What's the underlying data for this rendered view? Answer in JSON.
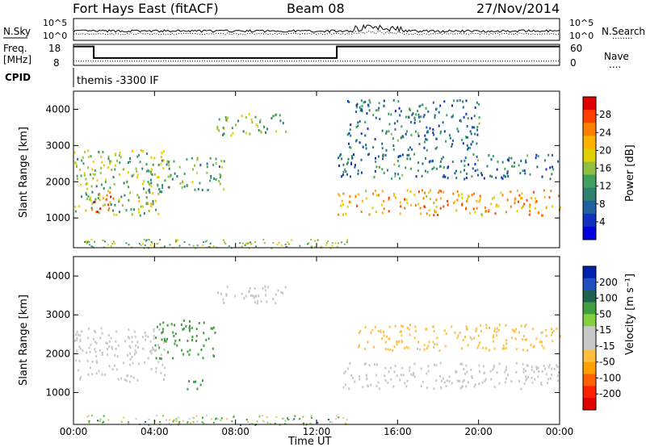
{
  "header": {
    "station": "Fort Hays East (fitACF)",
    "beam": "Beam 08",
    "date": "27/Nov/2014"
  },
  "noise_panel": {
    "left_label": "N.Sky",
    "left_ticks": [
      "10^5",
      "10^0"
    ],
    "right_ticks": [
      "10^5",
      "10^0"
    ],
    "right_label": "N.Search",
    "right_legend": "........"
  },
  "freq_panel": {
    "left_label_1": "Freq.",
    "left_label_2": "[MHz]",
    "left_ticks": [
      "18",
      "8"
    ],
    "right_ticks": [
      "60",
      "0"
    ],
    "right_label": "Nave",
    "right_legend": "....",
    "freq_steps": [
      {
        "t0": 0.0,
        "t1": 1.0,
        "mhz": 17.0
      },
      {
        "t0": 1.0,
        "t1": 13.0,
        "mhz": 11.5
      },
      {
        "t0": 13.0,
        "t1": 24.0,
        "mhz": 17.0
      }
    ],
    "nave_level": 12
  },
  "cpid": {
    "label": "CPID",
    "program": "themis -3300 IF"
  },
  "x_axis": {
    "title": "Time UT",
    "ticks": [
      "00:00",
      "04:00",
      "08:00",
      "12:00",
      "16:00",
      "20:00",
      "00:00"
    ],
    "range_hours": [
      0,
      24
    ]
  },
  "power_panel": {
    "ylabel": "Slant Range [km]",
    "yticks": [
      "4000",
      "3000",
      "2000",
      "1000"
    ],
    "colorbar_label": "Power [dB]",
    "colorbar_ticks": [
      "28",
      "24",
      "20",
      "16",
      "12",
      "8",
      "4"
    ],
    "colorbar_colors": [
      "#e00000",
      "#ff4000",
      "#ff8000",
      "#ffb000",
      "#e0d000",
      "#90c040",
      "#40a060",
      "#308070",
      "#2060a0",
      "#1030c0",
      "#0000e0"
    ]
  },
  "velocity_panel": {
    "ylabel": "Slant Range [km]",
    "yticks": [
      "4000",
      "3000",
      "2000",
      "1000"
    ],
    "colorbar_label": "Velocity [m s⁻¹]",
    "colorbar_ticks": [
      "200",
      "100",
      "50",
      "15",
      "-15",
      "-50",
      "-100",
      "-200"
    ],
    "colorbar_colors": [
      "#0020b0",
      "#2050c0",
      "#206050",
      "#40a040",
      "#80d040",
      "#c8c8c8",
      "#c8c8c8",
      "#ffc040",
      "#ffa000",
      "#ff6000",
      "#ff2000",
      "#e00000"
    ]
  },
  "chart_data": {
    "type": "heatmap",
    "title": "Fort Hays East (fitACF)  Beam 08  27/Nov/2014",
    "xlabel": "Time UT",
    "ylabel": "Slant Range [km]",
    "xlim": [
      0,
      24
    ],
    "ylim": [
      180,
      4500
    ],
    "power_regions": [
      {
        "t0": 0.0,
        "t1": 4.5,
        "r0": 1100,
        "r1": 2900,
        "db": 14
      },
      {
        "t0": 0.8,
        "t1": 2.0,
        "r0": 1200,
        "r1": 1800,
        "db": 26
      },
      {
        "t0": 3.5,
        "t1": 7.5,
        "r0": 1800,
        "r1": 2700,
        "db": 12
      },
      {
        "t0": 7.0,
        "t1": 10.5,
        "r0": 3300,
        "r1": 3900,
        "db": 14
      },
      {
        "t0": 13.0,
        "t1": 24.0,
        "r0": 1100,
        "r1": 1800,
        "db": 22
      },
      {
        "t0": 13.0,
        "t1": 24.0,
        "r0": 2100,
        "r1": 2800,
        "db": 8
      },
      {
        "t0": 13.5,
        "t1": 20.0,
        "r0": 2900,
        "r1": 4300,
        "db": 8
      }
    ],
    "velocity_regions": [
      {
        "t0": 0.0,
        "t1": 4.5,
        "r0": 1300,
        "r1": 2700,
        "v": 0
      },
      {
        "t0": 4.0,
        "t1": 7.0,
        "r0": 1900,
        "r1": 2900,
        "v": 60
      },
      {
        "t0": 5.5,
        "t1": 6.5,
        "r0": 1100,
        "r1": 1400,
        "v": 50
      },
      {
        "t0": 7.0,
        "t1": 10.5,
        "r0": 3300,
        "r1": 3800,
        "v": 0
      },
      {
        "t0": 13.0,
        "t1": 24.0,
        "r0": 1100,
        "r1": 1800,
        "v": 0
      },
      {
        "t0": 14.0,
        "t1": 24.0,
        "r0": 2100,
        "r1": 2800,
        "v": -20
      }
    ]
  }
}
